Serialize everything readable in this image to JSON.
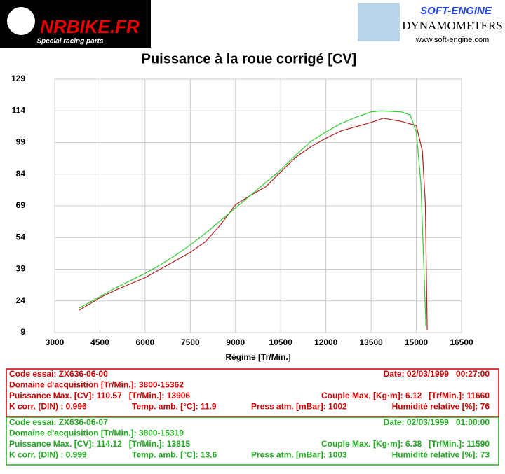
{
  "header": {
    "left_logo": "NRBIKE.FR",
    "left_tagline": "Special racing parts",
    "right_logo": "SOFT-ENGINE",
    "right_subtitle": "DYNAMOMETERS",
    "right_url": "www.soft-engine.com"
  },
  "chart_data": {
    "type": "line",
    "title": "Puissance à la roue corrigé [CV]",
    "x_label": "Régime [Tr/Min.]",
    "xlim": [
      3000,
      16500
    ],
    "xticks": [
      3000,
      4500,
      6000,
      7500,
      9000,
      10500,
      12000,
      13500,
      15000,
      16500
    ],
    "ylim": [
      9,
      129
    ],
    "yticks": [
      9,
      24,
      39,
      54,
      69,
      84,
      99,
      114,
      129
    ],
    "grid": true,
    "series": [
      {
        "color": "#b22222",
        "x": [
          3800,
          4500,
          5000,
          5500,
          6000,
          6500,
          7000,
          7500,
          8000,
          8500,
          9000,
          9500,
          10000,
          10500,
          11000,
          11500,
          12000,
          12500,
          13000,
          13500,
          13906,
          14500,
          15000,
          15200,
          15300,
          15362
        ],
        "values": [
          19.5,
          25.5,
          29,
          32,
          35,
          39,
          43,
          47,
          52,
          60,
          69.5,
          74,
          78,
          85,
          92,
          97,
          101,
          104.5,
          106.5,
          108.5,
          110.5,
          109,
          107,
          95,
          70,
          10
        ]
      },
      {
        "color": "#33cc33",
        "x": [
          3800,
          4500,
          5000,
          5500,
          6000,
          6500,
          7000,
          7500,
          8000,
          8500,
          9000,
          9500,
          10000,
          10500,
          11000,
          11500,
          12000,
          12500,
          13000,
          13500,
          13815,
          14500,
          14800,
          15000,
          15150,
          15250,
          15319
        ],
        "values": [
          20.5,
          26,
          30,
          33.5,
          37,
          41,
          45.5,
          50.5,
          56,
          62,
          68,
          74,
          80,
          86,
          93,
          99.5,
          104,
          108,
          111,
          113.5,
          114,
          113.5,
          112,
          104,
          80,
          40,
          12
        ]
      }
    ]
  },
  "panels": [
    {
      "color": "#cc0000",
      "rows": [
        [
          "Code essai: ZX636-06-00",
          "Date: 02/03/1999   00:27:00"
        ],
        [
          "Domaine d'acquisition [Tr/Min.]: 3800-15362"
        ],
        [
          "Puissance Max. [CV]: 110.57   [Tr/Min.]: 13906",
          "Couple Max. [Kg·m]: 6.12   [Tr/Min.]: 11660"
        ],
        [
          "K corr. (DIN) : 0.996",
          "Temp. amb. [°C]: 11.9",
          "Press atm. [mBar]: 1002",
          "Humidité relative [%]: 76"
        ]
      ]
    },
    {
      "color": "#22aa22",
      "rows": [
        [
          "Code essai: ZX636-06-07",
          "Date: 02/03/1999   01:00:00"
        ],
        [
          "Domaine d'acquisition [Tr/Min.]: 3800-15319"
        ],
        [
          "Puissance Max. [CV]: 114.12   [Tr/Min.]: 13815",
          "Couple Max. [Kg·m]: 6.38   [Tr/Min.]: 11590"
        ],
        [
          "K corr. (DIN) : 0.999",
          "Temp. amb. [°C]: 13.6",
          "Press atm. [mBar]: 1003",
          "Humidité relative [%]: 73"
        ]
      ]
    }
  ]
}
